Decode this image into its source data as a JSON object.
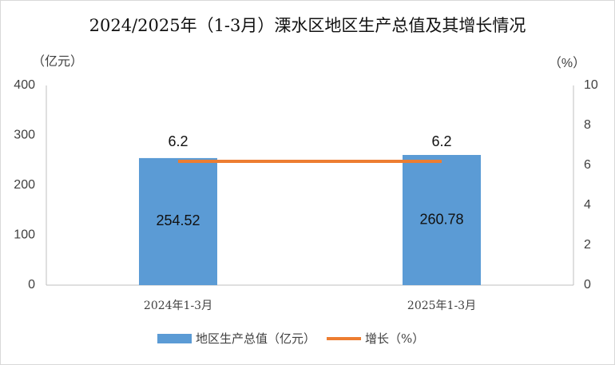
{
  "chart_data": {
    "type": "bar",
    "title": "2024/2025年（1-3月）溧水区地区生产总值及其增长情况",
    "y_label": "（亿元）",
    "y2_label": "（%）",
    "categories": [
      "2024年1-3月",
      "2025年1-3月"
    ],
    "series": [
      {
        "name": "地区生产总值（亿元）",
        "color": "#5b9bd5",
        "values": [
          254.52,
          260.78
        ]
      },
      {
        "name": "增长（%）",
        "type": "line",
        "axis": "y2",
        "color": "#ed7d31",
        "values": [
          6.2,
          6.2
        ]
      }
    ],
    "ylim": [
      0,
      400
    ],
    "yticks": [
      0,
      100,
      200,
      300,
      400
    ],
    "y2lim": [
      0,
      10
    ],
    "y2ticks": [
      0,
      2,
      4,
      6,
      8,
      10
    ],
    "grid": false,
    "legend": "bottom"
  }
}
